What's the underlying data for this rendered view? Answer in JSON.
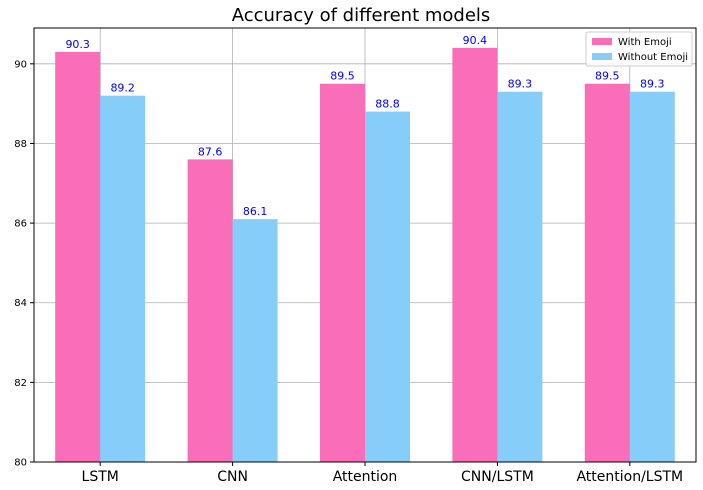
{
  "chart_data": {
    "type": "bar",
    "title": "Accuracy of different models",
    "xlabel": "",
    "ylabel": "",
    "categories": [
      "LSTM",
      "CNN",
      "Attention",
      "CNN/LSTM",
      "Attention/LSTM"
    ],
    "series": [
      {
        "name": "With Emoji",
        "color": "#fa6eb9",
        "values": [
          90.3,
          87.6,
          89.5,
          90.4,
          89.5
        ]
      },
      {
        "name": "Without Emoji",
        "color": "#87cdf9",
        "values": [
          89.2,
          86.1,
          88.8,
          89.3,
          89.3
        ]
      }
    ],
    "ylim": [
      80,
      90.9
    ],
    "yticks": [
      80,
      82,
      84,
      86,
      88,
      90
    ],
    "grid": true,
    "legend_position": "top-right",
    "data_label_color": "#0000ff"
  }
}
